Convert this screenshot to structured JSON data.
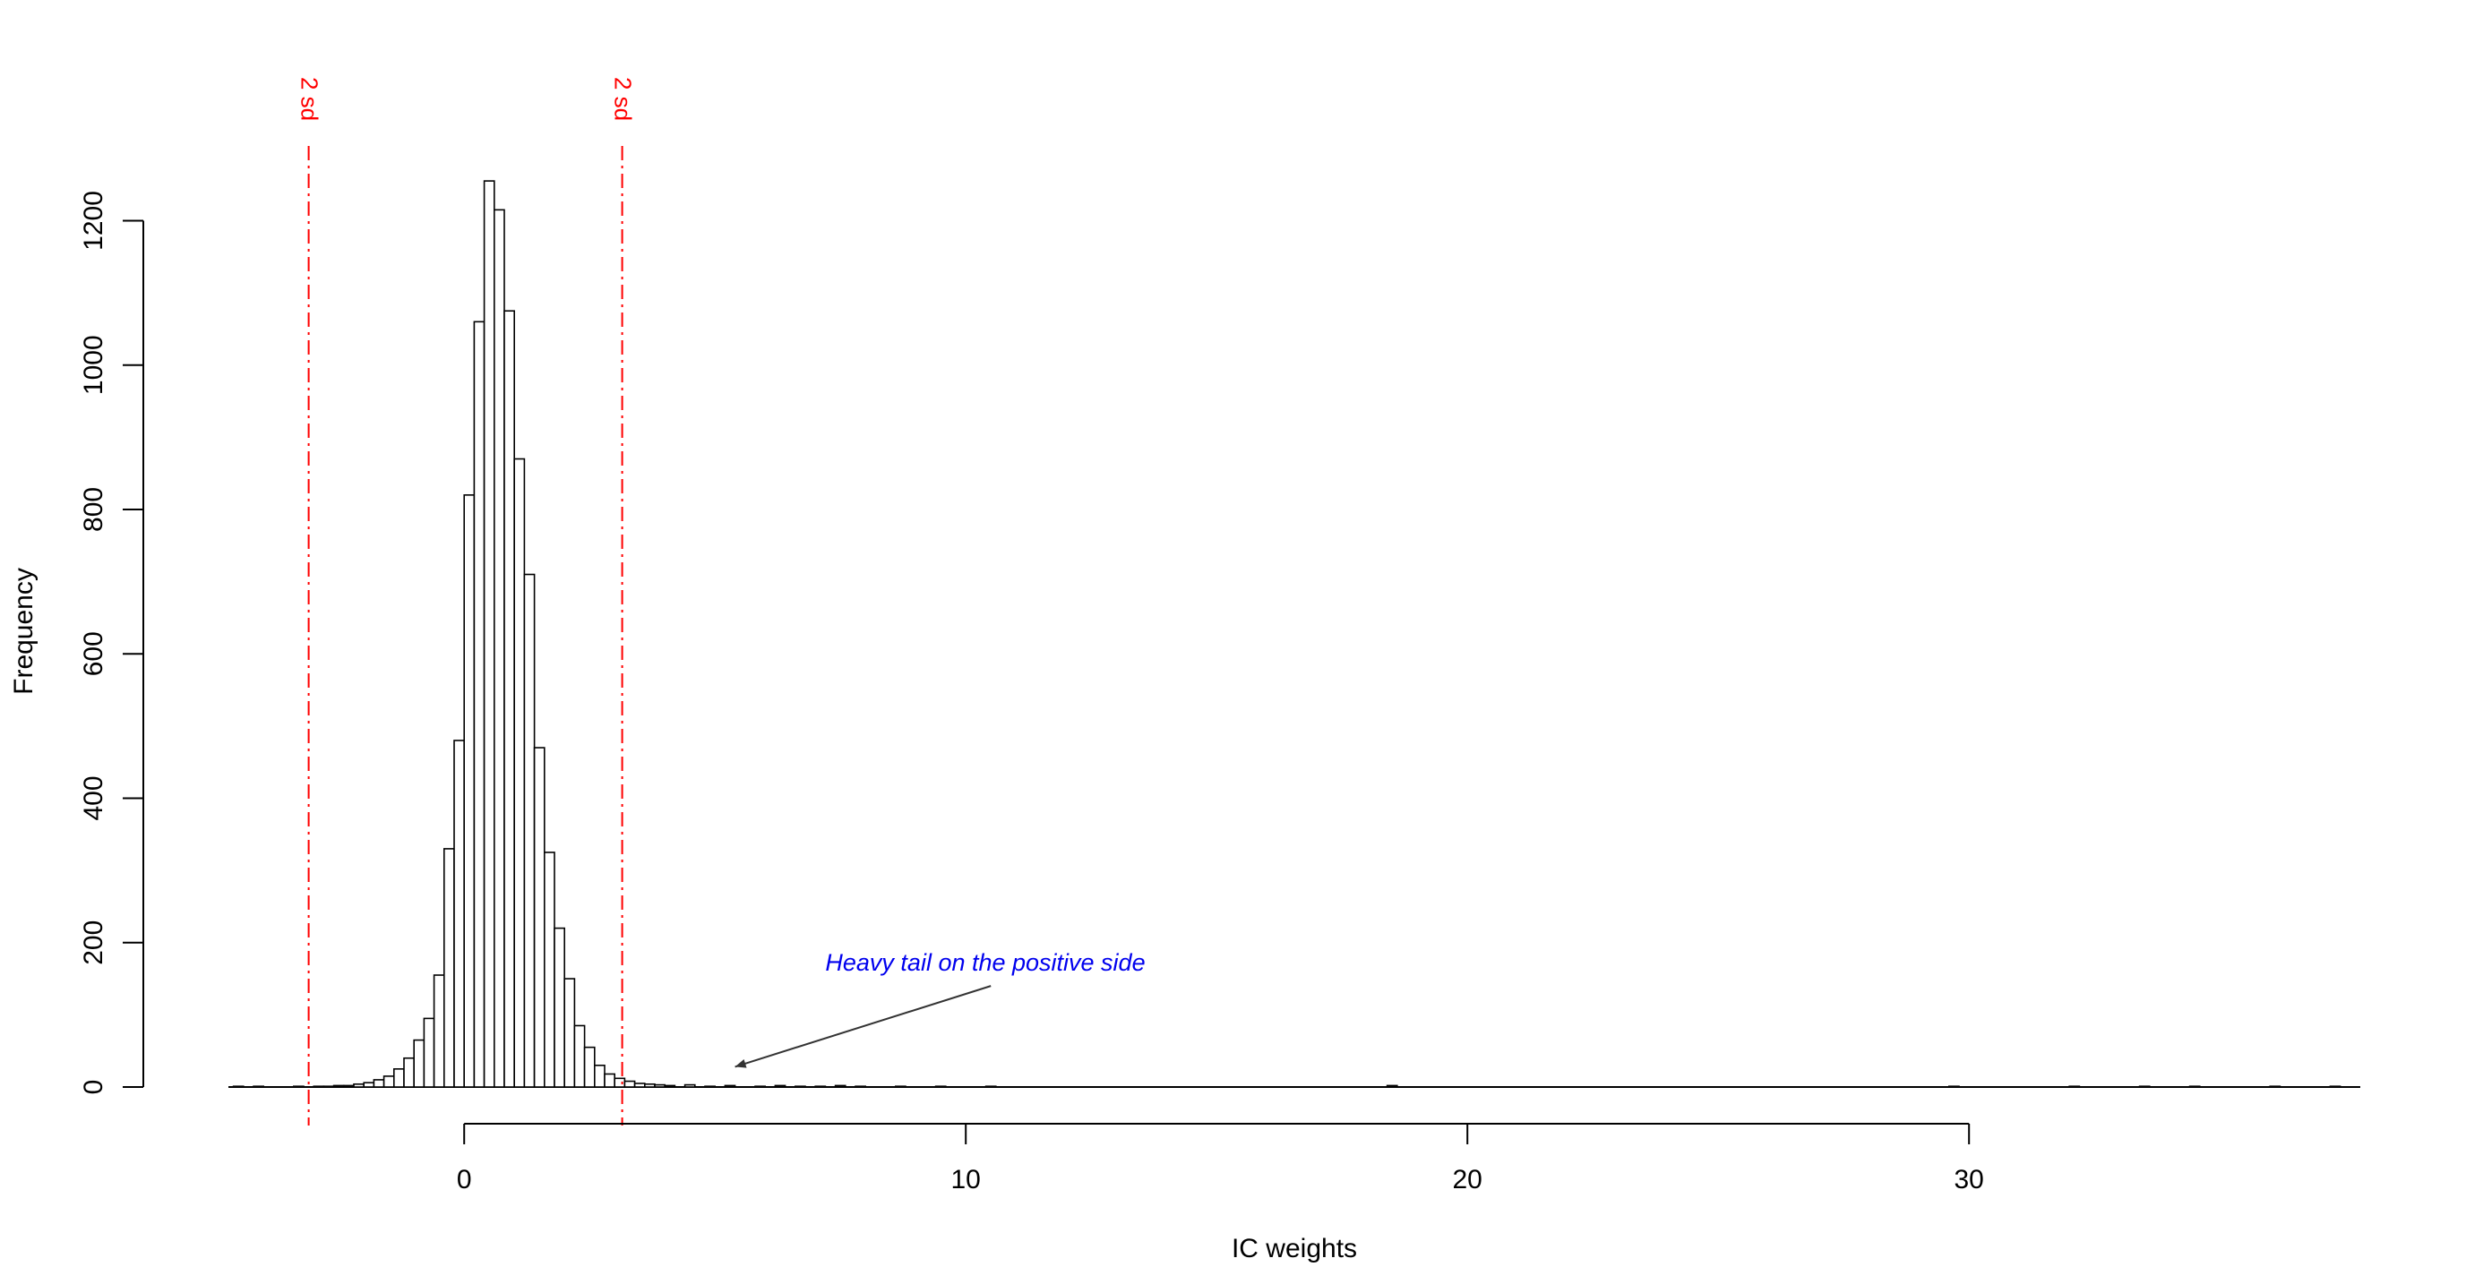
{
  "chart_data": {
    "type": "bar",
    "title": "",
    "xlabel": "IC weights",
    "ylabel": "Frequency",
    "xlim": [
      -4.7,
      37.8
    ],
    "ylim": [
      0,
      1300
    ],
    "xticks": [
      0,
      10,
      20,
      30
    ],
    "xtick_labels": [
      "0",
      "10",
      "20",
      "30"
    ],
    "xaxis_range": [
      0,
      30
    ],
    "yticks": [
      0,
      200,
      400,
      600,
      800,
      1000,
      1200
    ],
    "ytick_labels": [
      "0",
      "200",
      "400",
      "600",
      "800",
      "1000",
      "1200"
    ],
    "bin_width": 0.2,
    "bins": [
      {
        "x0": -4.6,
        "count": 1
      },
      {
        "x0": -4.4,
        "count": 0
      },
      {
        "x0": -4.2,
        "count": 1
      },
      {
        "x0": -3.4,
        "count": 1
      },
      {
        "x0": -3.0,
        "count": 1
      },
      {
        "x0": -2.8,
        "count": 1
      },
      {
        "x0": -2.6,
        "count": 2
      },
      {
        "x0": -2.4,
        "count": 2
      },
      {
        "x0": -2.2,
        "count": 4
      },
      {
        "x0": -2.0,
        "count": 6
      },
      {
        "x0": -1.8,
        "count": 10
      },
      {
        "x0": -1.6,
        "count": 15
      },
      {
        "x0": -1.4,
        "count": 25
      },
      {
        "x0": -1.2,
        "count": 40
      },
      {
        "x0": -1.0,
        "count": 65
      },
      {
        "x0": -0.8,
        "count": 95
      },
      {
        "x0": -0.6,
        "count": 155
      },
      {
        "x0": -0.4,
        "count": 330
      },
      {
        "x0": -0.2,
        "count": 480
      },
      {
        "x0": 0.0,
        "count": 820
      },
      {
        "x0": 0.2,
        "count": 1060
      },
      {
        "x0": 0.4,
        "count": 1255
      },
      {
        "x0": 0.6,
        "count": 1215
      },
      {
        "x0": 0.8,
        "count": 1075
      },
      {
        "x0": 1.0,
        "count": 870
      },
      {
        "x0": 1.2,
        "count": 710
      },
      {
        "x0": 1.4,
        "count": 470
      },
      {
        "x0": 1.6,
        "count": 325
      },
      {
        "x0": 1.8,
        "count": 220
      },
      {
        "x0": 2.0,
        "count": 150
      },
      {
        "x0": 2.2,
        "count": 85
      },
      {
        "x0": 2.4,
        "count": 55
      },
      {
        "x0": 2.6,
        "count": 30
      },
      {
        "x0": 2.8,
        "count": 18
      },
      {
        "x0": 3.0,
        "count": 12
      },
      {
        "x0": 3.2,
        "count": 8
      },
      {
        "x0": 3.4,
        "count": 5
      },
      {
        "x0": 3.6,
        "count": 4
      },
      {
        "x0": 3.8,
        "count": 3
      },
      {
        "x0": 4.0,
        "count": 2
      },
      {
        "x0": 4.4,
        "count": 3
      },
      {
        "x0": 4.8,
        "count": 1
      },
      {
        "x0": 5.2,
        "count": 2
      },
      {
        "x0": 5.8,
        "count": 1
      },
      {
        "x0": 6.2,
        "count": 2
      },
      {
        "x0": 6.6,
        "count": 1
      },
      {
        "x0": 7.0,
        "count": 1
      },
      {
        "x0": 7.4,
        "count": 2
      },
      {
        "x0": 7.8,
        "count": 1
      },
      {
        "x0": 8.6,
        "count": 1
      },
      {
        "x0": 9.4,
        "count": 1
      },
      {
        "x0": 10.4,
        "count": 1
      },
      {
        "x0": 18.4,
        "count": 2
      },
      {
        "x0": 29.6,
        "count": 1
      },
      {
        "x0": 32.0,
        "count": 1
      },
      {
        "x0": 33.4,
        "count": 1
      },
      {
        "x0": 34.4,
        "count": 1
      },
      {
        "x0": 36.0,
        "count": 1
      },
      {
        "x0": 37.2,
        "count": 1
      }
    ],
    "sd_lines": [
      {
        "x": -3.1,
        "label": "2 sd"
      },
      {
        "x": 3.15,
        "label": "2 sd"
      }
    ],
    "annotation": {
      "text": "Heavy tail on the positive side",
      "arrow_from": [
        10.5,
        140
      ],
      "arrow_to": [
        5.4,
        28
      ]
    },
    "grid": false,
    "colors": {
      "bars": "#000000",
      "sd_lines": "#ff0000",
      "annotation_text": "#0000ee",
      "annotation_arrow": "#333333"
    }
  }
}
